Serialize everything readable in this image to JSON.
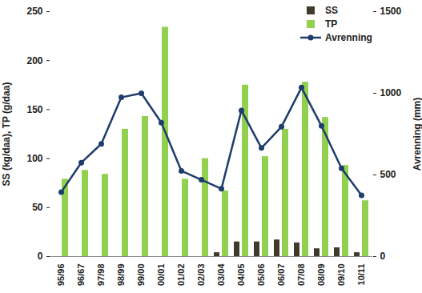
{
  "chart_data": {
    "type": "bar",
    "categories": [
      "95/96",
      "96/67",
      "97/98",
      "98/99",
      "99/00",
      "00/01",
      "01/02",
      "02/03",
      "03/04",
      "04/05",
      "05/06",
      "06/07",
      "07/08",
      "08/09",
      "09/10",
      "10/11"
    ],
    "series": [
      {
        "name": "SS",
        "type": "bar",
        "color": "#3f3a2b",
        "values": [
          null,
          null,
          null,
          null,
          null,
          null,
          null,
          null,
          4,
          15,
          15,
          17,
          14,
          8,
          9,
          4
        ]
      },
      {
        "name": "TP",
        "type": "bar",
        "color": "#92d050",
        "values": [
          79,
          88,
          84,
          130,
          143,
          234,
          79,
          100,
          67,
          175,
          102,
          130,
          178,
          142,
          93,
          57
        ]
      },
      {
        "name": "Avrenning",
        "type": "line",
        "axis": "y2",
        "color": "#1f3d6b",
        "marker": "circle",
        "values": [
          395,
          575,
          690,
          975,
          1000,
          820,
          525,
          470,
          415,
          895,
          665,
          795,
          1035,
          800,
          540,
          375
        ]
      }
    ],
    "y_label": "SS (kg/daa), TP (g/daa)",
    "y2_label": "Avrenning (mm)",
    "ylim": [
      0,
      250
    ],
    "yticks": [
      0,
      50,
      100,
      150,
      200,
      250
    ],
    "y2lim": [
      0,
      1500
    ],
    "y2ticks": [
      0,
      500,
      1000,
      1500
    ],
    "legend": "top-right",
    "grid": false
  }
}
